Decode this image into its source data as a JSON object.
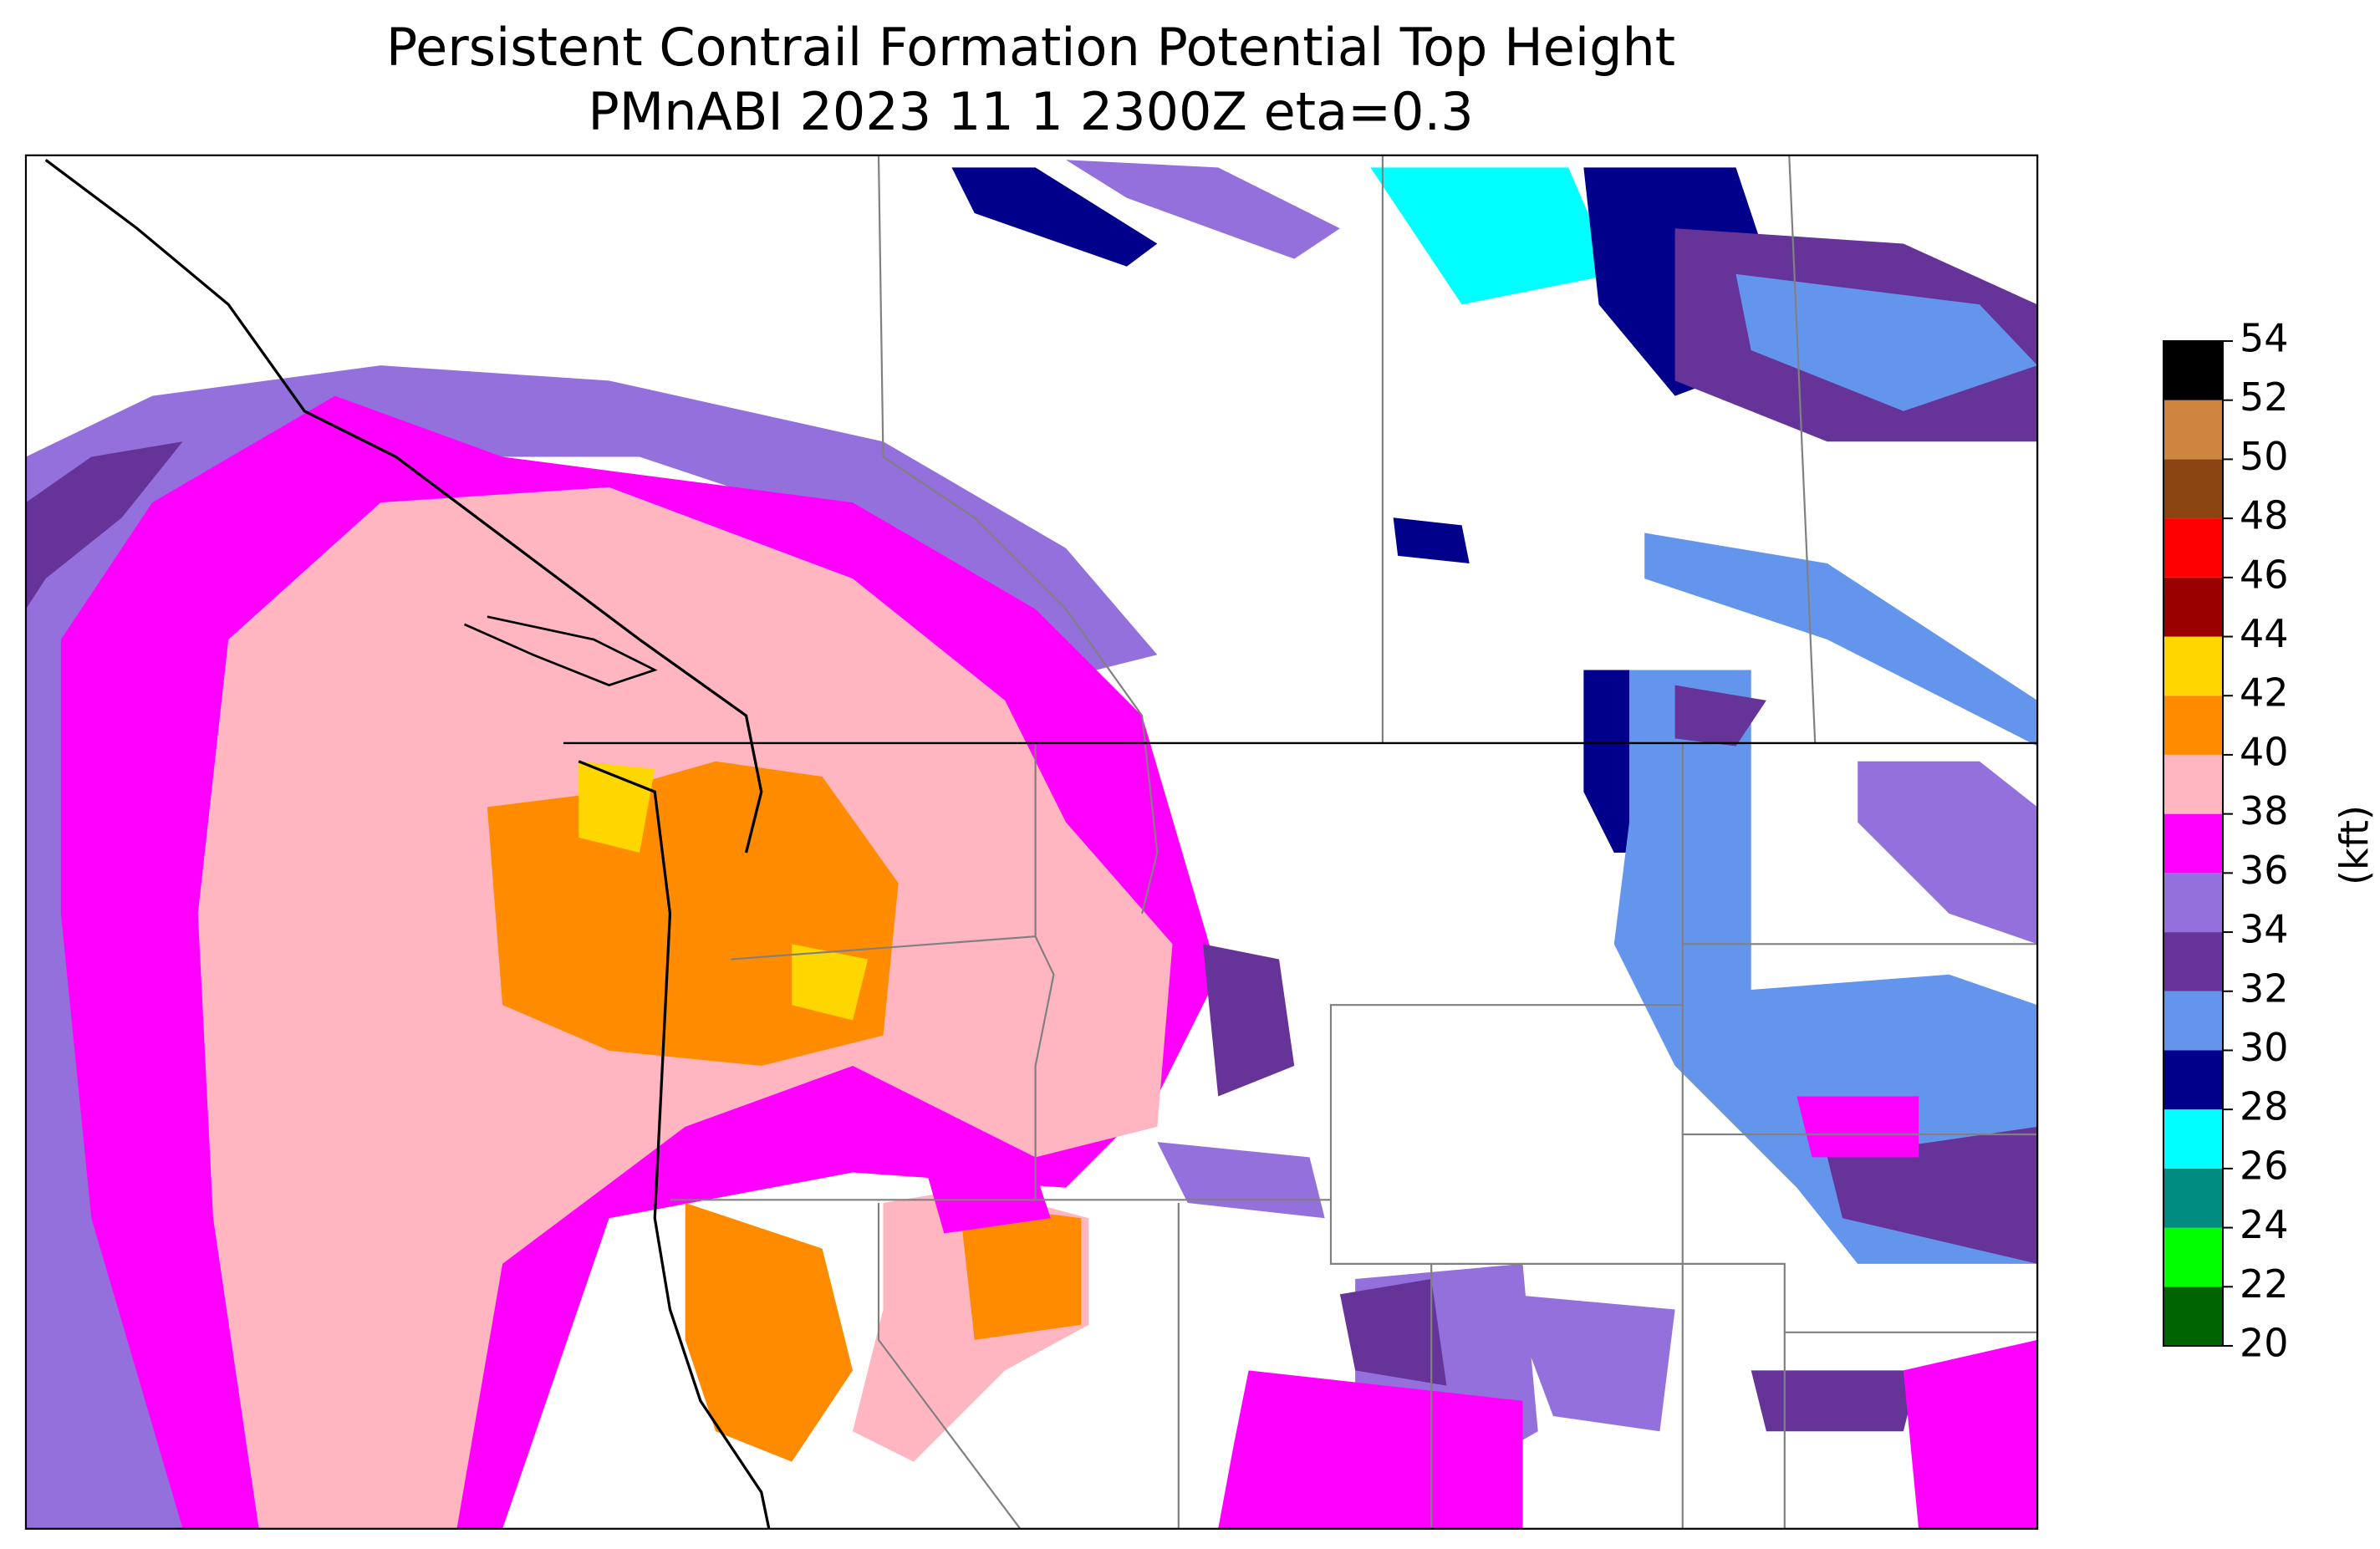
{
  "title": [
    "Persistent Contrail Formation Potential Top Height",
    "PMnABI  2023 11  1   2300Z  eta=0.3"
  ],
  "colorbar": {
    "label": "(kft)",
    "ticks": [
      20,
      22,
      24,
      26,
      28,
      30,
      32,
      34,
      36,
      38,
      40,
      42,
      44,
      46,
      48,
      50,
      52,
      54
    ],
    "colors": [
      "#006400",
      "#00ff00",
      "#008b80",
      "#00ffff",
      "#00008b",
      "#6495ed",
      "#663399",
      "#9370db",
      "#ff00ff",
      "#ffb6c1",
      "#ff8c00",
      "#ffd700",
      "#990000",
      "#ff0000",
      "#8b4513",
      "#cd853f",
      "#000000"
    ]
  }
}
